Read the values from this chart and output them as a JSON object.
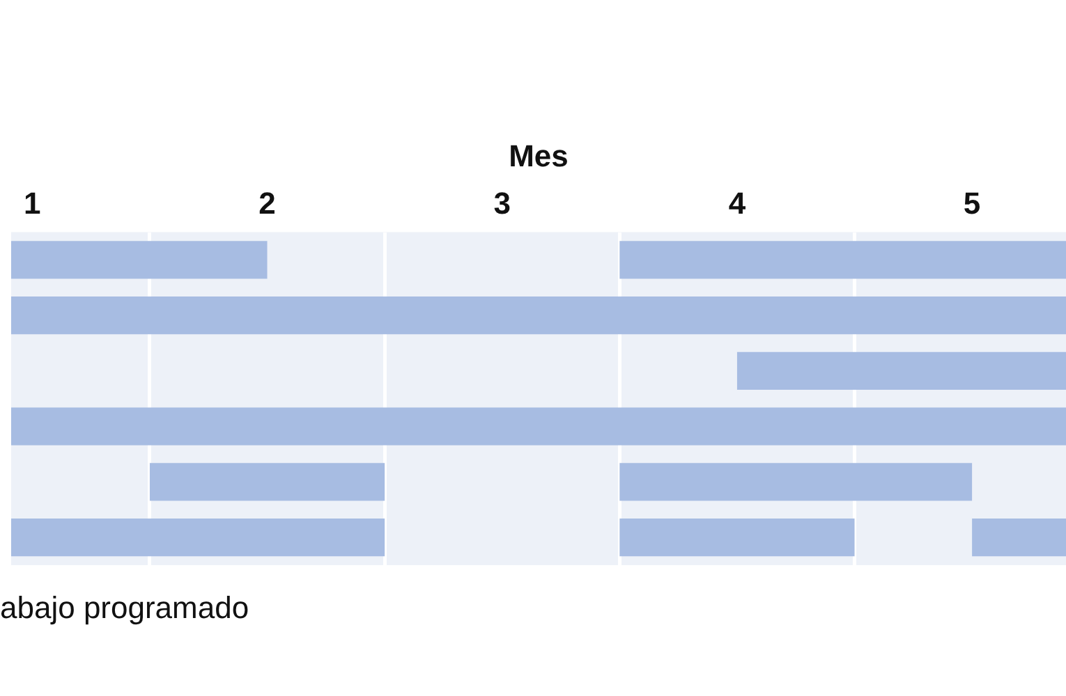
{
  "chart_data": {
    "type": "bar",
    "orientation": "horizontal",
    "xlabel": "Mes",
    "categories": [
      null,
      null,
      null,
      null,
      null,
      null
    ],
    "series": [
      {
        "color": "#a7bce2",
        "base": [
          0.91,
          0.91,
          4.0,
          0.91,
          1.5,
          0.91
        ],
        "values": [
          1.09,
          4.49,
          1.4,
          4.49,
          1.0,
          1.59
        ]
      },
      {
        "color": "#a7bce2",
        "base": [
          3.5,
          null,
          null,
          null,
          3.5,
          3.5
        ],
        "values": [
          1.9,
          null,
          null,
          null,
          1.5,
          1.0
        ]
      },
      {
        "color": "#a7bce2",
        "base": [
          null,
          null,
          null,
          null,
          null,
          5.0
        ],
        "values": [
          null,
          null,
          null,
          null,
          null,
          0.4
        ]
      }
    ],
    "xlim": [
      0.91,
      5.4
    ],
    "xticks": [
      1,
      {
        "value": 1.5,
        "label": null
      },
      2,
      {
        "value": 2.5,
        "label": null
      },
      3,
      {
        "value": 3.5,
        "label": null
      },
      4,
      {
        "value": 4.5,
        "label": null
      },
      5
    ],
    "grid": "x",
    "tick_labels": "x",
    "legend": false,
    "annotations": [
      "abajo programado"
    ]
  }
}
